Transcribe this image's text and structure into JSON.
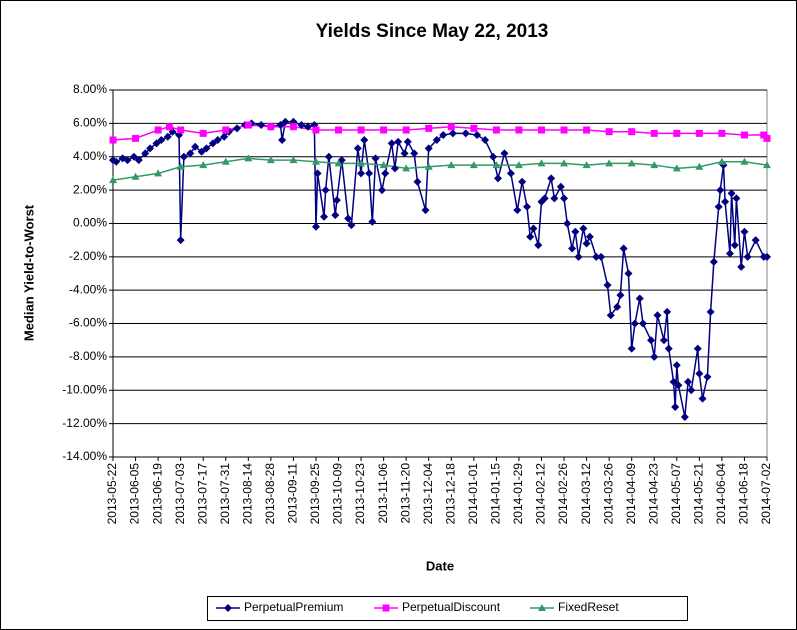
{
  "chart_data": {
    "type": "line",
    "title": "Yields Since May 22, 2013",
    "xlabel": "Date",
    "ylabel": "Median Yield-to-Worst",
    "xlim": [
      "2013-05-22",
      "2014-07-02"
    ],
    "xticks": [
      "2013-05-22",
      "2013-06-05",
      "2013-06-19",
      "2013-07-03",
      "2013-07-17",
      "2013-07-31",
      "2013-08-14",
      "2013-08-28",
      "2013-09-11",
      "2013-09-25",
      "2013-10-09",
      "2013-10-23",
      "2013-11-06",
      "2013-11-20",
      "2013-12-04",
      "2013-12-18",
      "2014-01-01",
      "2014-01-15",
      "2014-01-29",
      "2014-02-12",
      "2014-02-26",
      "2014-03-12",
      "2014-03-26",
      "2014-04-09",
      "2014-04-23",
      "2014-05-07",
      "2014-05-21",
      "2014-06-04",
      "2014-06-18",
      "2014-07-02"
    ],
    "ylim": [
      -14,
      8
    ],
    "yticks": [
      {
        "value": -14,
        "label": "-14.00%"
      },
      {
        "value": -12,
        "label": "-12.00%"
      },
      {
        "value": -10,
        "label": "-10.00%"
      },
      {
        "value": -8,
        "label": "-8.00%"
      },
      {
        "value": -6,
        "label": "-6.00%"
      },
      {
        "value": -4,
        "label": "-4.00%"
      },
      {
        "value": -2,
        "label": "-2.00%"
      },
      {
        "value": 0,
        "label": "0.00%"
      },
      {
        "value": 2,
        "label": "2.00%"
      },
      {
        "value": 4,
        "label": "4.00%"
      },
      {
        "value": 6,
        "label": "6.00%"
      },
      {
        "value": 8,
        "label": "8.00%"
      }
    ],
    "grid": true,
    "legend": "bottom",
    "series": [
      {
        "name": "PerpetualPremium",
        "color": "#000080",
        "marker": "diamond",
        "x": [
          "2013-05-22",
          "2013-05-24",
          "2013-05-28",
          "2013-05-31",
          "2013-06-04",
          "2013-06-07",
          "2013-06-11",
          "2013-06-14",
          "2013-06-18",
          "2013-06-21",
          "2013-06-25",
          "2013-06-28",
          "2013-07-02",
          "2013-07-03",
          "2013-07-05",
          "2013-07-09",
          "2013-07-12",
          "2013-07-16",
          "2013-07-19",
          "2013-07-23",
          "2013-07-26",
          "2013-07-30",
          "2013-08-02",
          "2013-08-07",
          "2013-08-12",
          "2013-08-16",
          "2013-08-22",
          "2013-08-28",
          "2013-09-03",
          "2013-09-04",
          "2013-09-06",
          "2013-09-11",
          "2013-09-16",
          "2013-09-20",
          "2013-09-24",
          "2013-09-25",
          "2013-09-26",
          "2013-09-30",
          "2013-10-01",
          "2013-10-03",
          "2013-10-07",
          "2013-10-08",
          "2013-10-11",
          "2013-10-15",
          "2013-10-17",
          "2013-10-21",
          "2013-10-23",
          "2013-10-25",
          "2013-10-28",
          "2013-10-30",
          "2013-11-01",
          "2013-11-05",
          "2013-11-07",
          "2013-11-11",
          "2013-11-13",
          "2013-11-15",
          "2013-11-19",
          "2013-11-21",
          "2013-11-25",
          "2013-11-27",
          "2013-12-02",
          "2013-12-04",
          "2013-12-09",
          "2013-12-13",
          "2013-12-19",
          "2013-12-27",
          "2014-01-03",
          "2014-01-08",
          "2014-01-13",
          "2014-01-16",
          "2014-01-20",
          "2014-01-24",
          "2014-01-28",
          "2014-01-31",
          "2014-02-03",
          "2014-02-05",
          "2014-02-07",
          "2014-02-10",
          "2014-02-12",
          "2014-02-14",
          "2014-02-18",
          "2014-02-20",
          "2014-02-24",
          "2014-02-26",
          "2014-02-28",
          "2014-03-03",
          "2014-03-05",
          "2014-03-07",
          "2014-03-10",
          "2014-03-12",
          "2014-03-14",
          "2014-03-18",
          "2014-03-21",
          "2014-03-25",
          "2014-03-27",
          "2014-03-31",
          "2014-04-02",
          "2014-04-04",
          "2014-04-07",
          "2014-04-09",
          "2014-04-11",
          "2014-04-14",
          "2014-04-16",
          "2014-04-21",
          "2014-04-23",
          "2014-04-25",
          "2014-04-29",
          "2014-05-01",
          "2014-05-02",
          "2014-05-05",
          "2014-05-06",
          "2014-05-07",
          "2014-05-08",
          "2014-05-12",
          "2014-05-14",
          "2014-05-16",
          "2014-05-20",
          "2014-05-21",
          "2014-05-23",
          "2014-05-26",
          "2014-05-28",
          "2014-05-30",
          "2014-06-02",
          "2014-06-03",
          "2014-06-05",
          "2014-06-06",
          "2014-06-09",
          "2014-06-10",
          "2014-06-12",
          "2014-06-13",
          "2014-06-16",
          "2014-06-18",
          "2014-06-20",
          "2014-06-25",
          "2014-06-30",
          "2014-07-02"
        ],
        "values": [
          3.8,
          3.7,
          3.9,
          3.8,
          4.0,
          3.8,
          4.2,
          4.5,
          4.8,
          5.0,
          5.2,
          5.5,
          5.3,
          -1.0,
          4.0,
          4.2,
          4.6,
          4.3,
          4.5,
          4.8,
          5.0,
          5.2,
          5.5,
          5.7,
          5.9,
          6.0,
          5.9,
          5.8,
          5.9,
          5.0,
          6.1,
          6.1,
          5.9,
          5.8,
          5.9,
          -0.2,
          3.0,
          0.4,
          2.0,
          4.0,
          0.5,
          1.4,
          3.8,
          0.3,
          -0.1,
          4.5,
          3.0,
          5.0,
          3.0,
          0.1,
          3.9,
          2.0,
          3.0,
          4.8,
          3.3,
          4.9,
          4.2,
          4.9,
          4.2,
          2.5,
          0.8,
          4.5,
          5.0,
          5.3,
          5.4,
          5.4,
          5.3,
          5.0,
          4.0,
          2.7,
          4.2,
          3.0,
          0.8,
          2.5,
          1.0,
          -0.8,
          -0.3,
          -1.3,
          1.3,
          1.5,
          2.7,
          1.5,
          2.2,
          1.5,
          0.0,
          -1.5,
          -0.5,
          -2.0,
          -0.3,
          -1.2,
          -0.8,
          -2.0,
          -2.0,
          -3.7,
          -5.5,
          -5.0,
          -4.3,
          -1.5,
          -3.0,
          -7.5,
          -6.0,
          -4.5,
          -6.0,
          -7.0,
          -8.0,
          -5.5,
          -7.0,
          -5.3,
          -7.5,
          -9.5,
          -11.0,
          -8.5,
          -9.7,
          -11.6,
          -9.5,
          -10.0,
          -7.5,
          -9.0,
          -10.5,
          -9.2,
          -5.3,
          -2.3,
          1.0,
          2.0,
          3.5,
          1.3,
          -1.8,
          1.8,
          -1.3,
          1.5,
          -2.6,
          -0.5,
          -2.0,
          -1.0,
          -2.0,
          -2.0
        ]
      },
      {
        "name": "PerpetualDiscount",
        "color": "#ff00ff",
        "marker": "square",
        "x": [
          "2013-05-22",
          "2013-06-05",
          "2013-06-19",
          "2013-06-26",
          "2013-07-03",
          "2013-07-17",
          "2013-07-31",
          "2013-08-14",
          "2013-08-28",
          "2013-09-11",
          "2013-09-25",
          "2013-10-09",
          "2013-10-23",
          "2013-11-06",
          "2013-11-20",
          "2013-12-04",
          "2013-12-18",
          "2014-01-01",
          "2014-01-15",
          "2014-01-29",
          "2014-02-12",
          "2014-02-26",
          "2014-03-12",
          "2014-03-26",
          "2014-04-09",
          "2014-04-23",
          "2014-05-07",
          "2014-05-21",
          "2014-06-04",
          "2014-06-18",
          "2014-06-30",
          "2014-07-02"
        ],
        "values": [
          5.0,
          5.1,
          5.6,
          5.8,
          5.6,
          5.4,
          5.6,
          5.9,
          5.8,
          5.8,
          5.6,
          5.6,
          5.6,
          5.6,
          5.6,
          5.7,
          5.8,
          5.7,
          5.6,
          5.6,
          5.6,
          5.6,
          5.6,
          5.5,
          5.5,
          5.4,
          5.4,
          5.4,
          5.4,
          5.3,
          5.3,
          5.1
        ]
      },
      {
        "name": "FixedReset",
        "color": "#339966",
        "marker": "triangle",
        "x": [
          "2013-05-22",
          "2013-06-05",
          "2013-06-19",
          "2013-07-03",
          "2013-07-17",
          "2013-07-31",
          "2013-08-14",
          "2013-08-28",
          "2013-09-11",
          "2013-09-25",
          "2013-10-09",
          "2013-10-23",
          "2013-11-06",
          "2013-11-20",
          "2013-12-04",
          "2013-12-18",
          "2014-01-01",
          "2014-01-15",
          "2014-01-29",
          "2014-02-12",
          "2014-02-26",
          "2014-03-12",
          "2014-03-26",
          "2014-04-09",
          "2014-04-23",
          "2014-05-07",
          "2014-05-21",
          "2014-06-04",
          "2014-06-18",
          "2014-07-02"
        ],
        "values": [
          2.6,
          2.8,
          3.0,
          3.4,
          3.5,
          3.7,
          3.9,
          3.8,
          3.8,
          3.7,
          3.6,
          3.6,
          3.5,
          3.3,
          3.4,
          3.5,
          3.5,
          3.5,
          3.5,
          3.6,
          3.6,
          3.5,
          3.6,
          3.6,
          3.5,
          3.3,
          3.4,
          3.7,
          3.7,
          3.5
        ]
      }
    ]
  }
}
